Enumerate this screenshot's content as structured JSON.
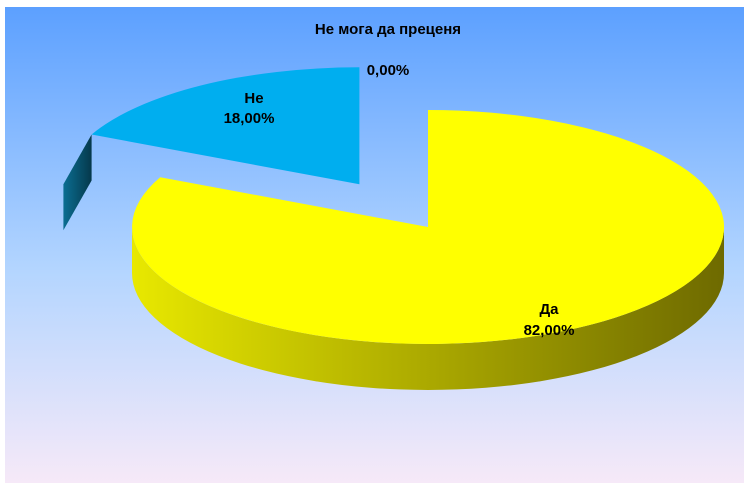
{
  "chart_data": {
    "type": "pie",
    "style": "3d-exploded",
    "title": "",
    "slices": [
      {
        "label": "Да",
        "value": 82.0,
        "value_label": "82,00%",
        "color": "#FFFF00",
        "side_color_light": "#E8E800",
        "side_color_dark": "#6E6A00",
        "exploded": false
      },
      {
        "label": "Не",
        "value": 18.0,
        "value_label": "18,00%",
        "color": "#00AEEF",
        "side_color_light": "#0B6E92",
        "side_color_dark": "#05384B",
        "exploded": true
      },
      {
        "label": "Не мога да преценя",
        "value": 0.0,
        "value_label": "0,00%",
        "color": "#7F7F7F",
        "exploded": false
      }
    ],
    "background_colors": [
      "#5CA0FF",
      "#B3D5FF",
      "#F6E9F8"
    ],
    "legend": "none"
  }
}
